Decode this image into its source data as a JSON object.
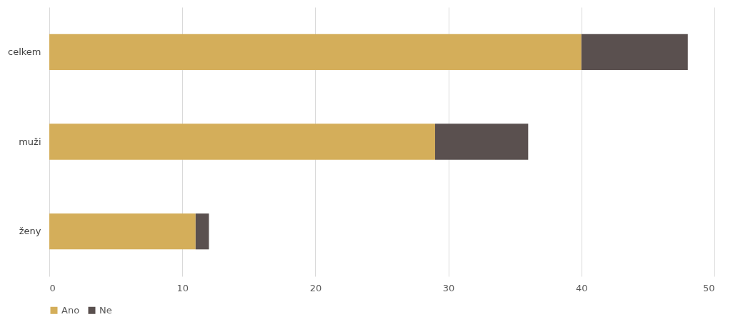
{
  "chart_data": {
    "type": "bar",
    "orientation": "horizontal",
    "stacked": true,
    "categories": [
      "celkem",
      "muži",
      "ženy"
    ],
    "series": [
      {
        "name": "Ano",
        "color": "#d4ae5a",
        "values": [
          40,
          29,
          11
        ]
      },
      {
        "name": "Ne",
        "color": "#5a504f",
        "values": [
          8,
          7,
          1
        ]
      }
    ],
    "xlim": [
      0,
      50
    ],
    "xticks": [
      0,
      10,
      20,
      30,
      40,
      50
    ],
    "grid": "x",
    "legend": "bottom"
  }
}
